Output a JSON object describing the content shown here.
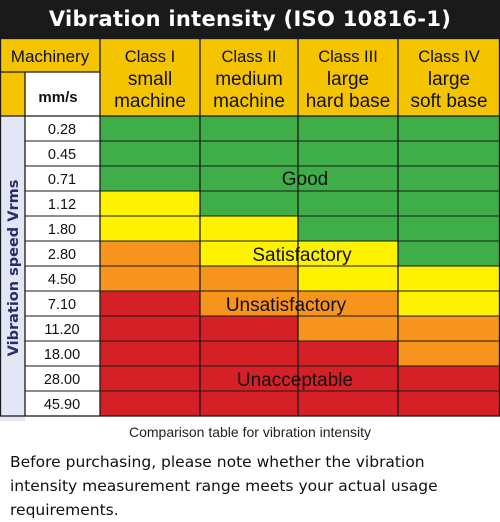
{
  "title": "Vibration intensity (ISO 10816-1)",
  "caption": "Comparison table for vibration intensity",
  "note": "Before purchasing, please note whether the vibration intensity measurement range meets your actual usage requirements.",
  "colors": {
    "header_bg": "#f5c400",
    "axis_bg": "#e3e7f5",
    "good": "#3fae49",
    "satisfactory": "#fff200",
    "unsatisfactory": "#f7941d",
    "unacceptable": "#d62027",
    "grid": "#1a1a1a"
  },
  "chart_data": {
    "type": "table",
    "corner_label": "Machinery",
    "units_label": "mm/s",
    "row_axis_label": "Vibration speed Vrms",
    "columns": [
      {
        "class": "Class I",
        "desc1": "small",
        "desc2": "machine"
      },
      {
        "class": "Class II",
        "desc1": "medium",
        "desc2": "machine"
      },
      {
        "class": "Class III",
        "desc1": "large",
        "desc2": "hard base"
      },
      {
        "class": "Class IV",
        "desc1": "large",
        "desc2": "soft base"
      }
    ],
    "rows": [
      "0.28",
      "0.45",
      "0.71",
      "1.12",
      "1.80",
      "2.80",
      "4.50",
      "7.10",
      "11.20",
      "18.00",
      "28.00",
      "45.90"
    ],
    "levels": [
      "Good",
      "Satisfactory",
      "Unsatisfactory",
      "Unacceptable"
    ],
    "grid": [
      [
        0,
        0,
        0,
        0
      ],
      [
        0,
        0,
        0,
        0
      ],
      [
        0,
        0,
        0,
        0
      ],
      [
        1,
        0,
        0,
        0
      ],
      [
        1,
        1,
        0,
        0
      ],
      [
        2,
        1,
        1,
        0
      ],
      [
        2,
        2,
        1,
        1
      ],
      [
        3,
        2,
        2,
        1
      ],
      [
        3,
        3,
        2,
        2
      ],
      [
        3,
        3,
        3,
        2
      ],
      [
        3,
        3,
        3,
        3
      ],
      [
        3,
        3,
        3,
        3
      ]
    ]
  }
}
